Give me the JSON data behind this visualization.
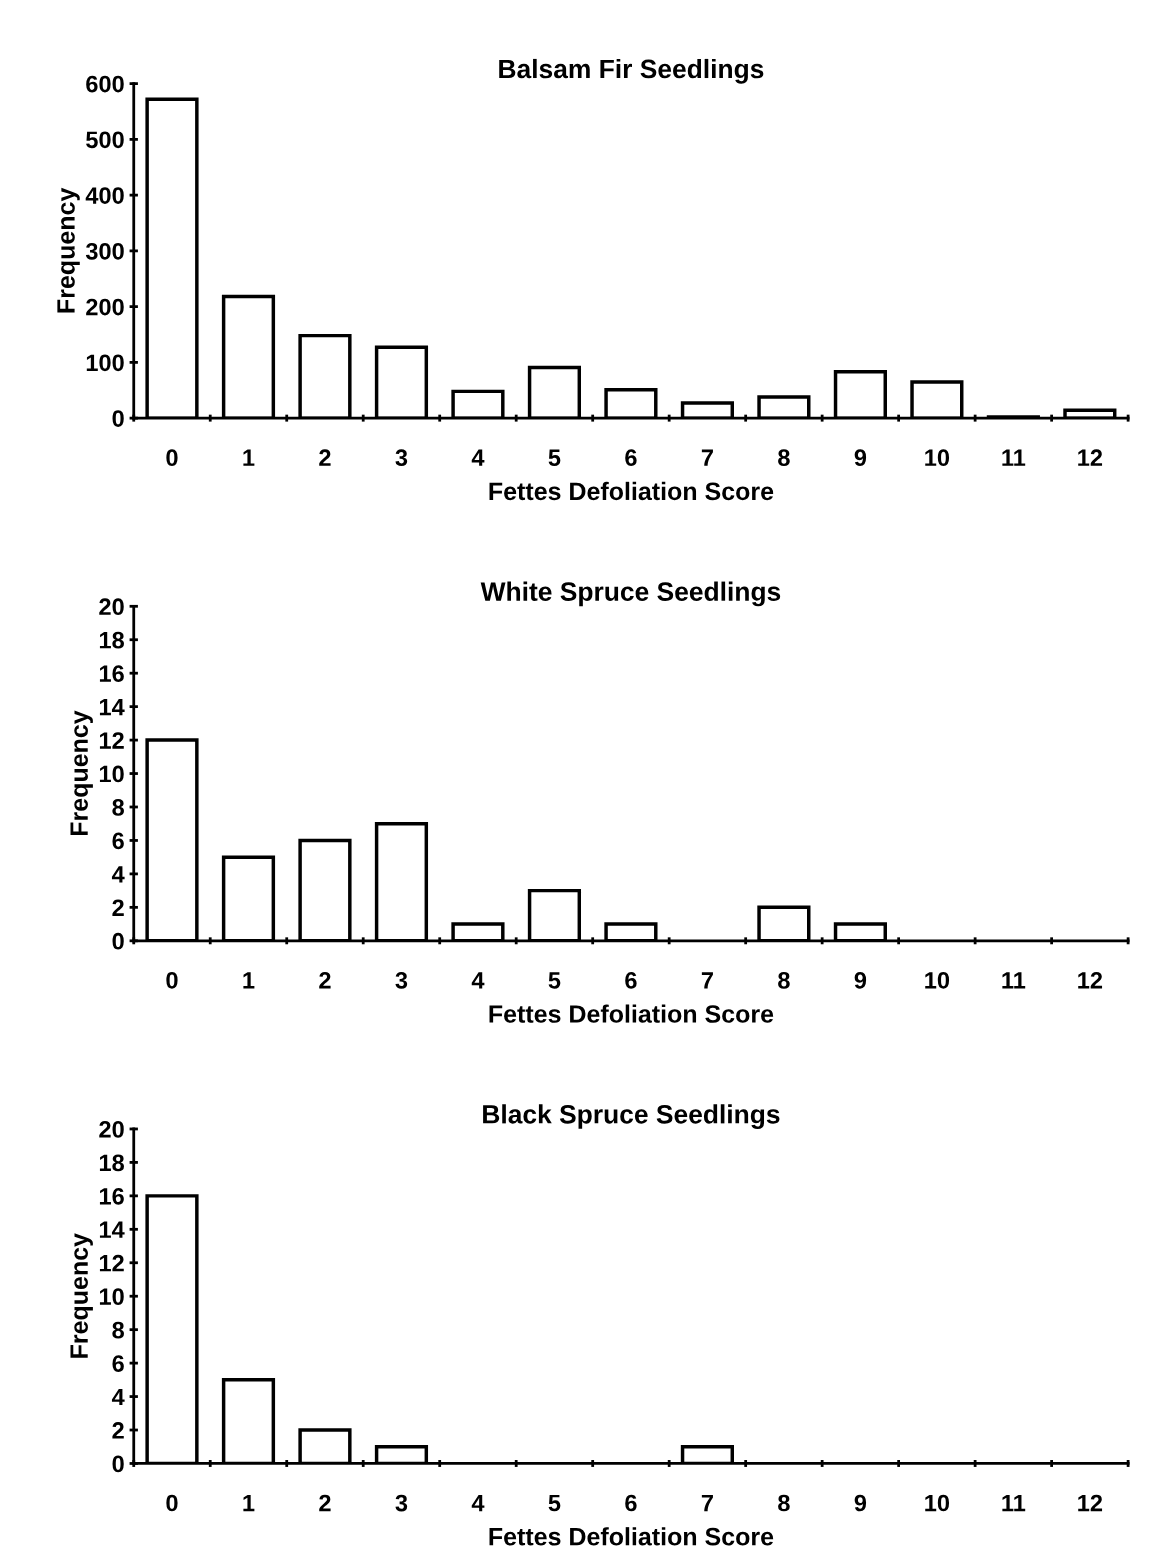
{
  "chart_data": [
    {
      "type": "bar",
      "title": "Balsam Fir Seedlings",
      "xlabel": "Fettes Defoliation Score",
      "ylabel": "Frequency",
      "categories": [
        "0",
        "1",
        "2",
        "3",
        "4",
        "5",
        "6",
        "7",
        "8",
        "9",
        "10",
        "11",
        "12"
      ],
      "values": [
        572,
        218,
        148,
        127,
        48,
        91,
        51,
        27,
        38,
        83,
        65,
        2,
        14
      ],
      "color": "#ffffff",
      "ylim": [
        0,
        600
      ],
      "yticks": [
        0,
        100,
        200,
        300,
        400,
        500,
        600
      ],
      "grid": false,
      "legend": false
    },
    {
      "type": "bar",
      "title": "White Spruce Seedlings",
      "xlabel": "Fettes Defoliation Score",
      "ylabel": "Frequency",
      "categories": [
        "0",
        "1",
        "2",
        "3",
        "4",
        "5",
        "6",
        "7",
        "8",
        "9",
        "10",
        "11",
        "12"
      ],
      "values": [
        12,
        5,
        6,
        7,
        1,
        3,
        1,
        0,
        2,
        1,
        0,
        0,
        0
      ],
      "color": "#ffffff",
      "ylim": [
        0,
        20
      ],
      "yticks": [
        0,
        2,
        4,
        6,
        8,
        10,
        12,
        14,
        16,
        18,
        20
      ],
      "grid": false,
      "legend": false
    },
    {
      "type": "bar",
      "title": "Black Spruce Seedlings",
      "xlabel": "Fettes Defoliation Score",
      "ylabel": "Frequency",
      "categories": [
        "0",
        "1",
        "2",
        "3",
        "4",
        "5",
        "6",
        "7",
        "8",
        "9",
        "10",
        "11",
        "12"
      ],
      "values": [
        16,
        5,
        2,
        1,
        0,
        0,
        0,
        1,
        0,
        0,
        0,
        0,
        0
      ],
      "color": "#ffffff",
      "ylim": [
        0,
        20
      ],
      "yticks": [
        0,
        2,
        4,
        6,
        8,
        10,
        12,
        14,
        16,
        18,
        20
      ],
      "grid": false,
      "legend": false
    }
  ]
}
